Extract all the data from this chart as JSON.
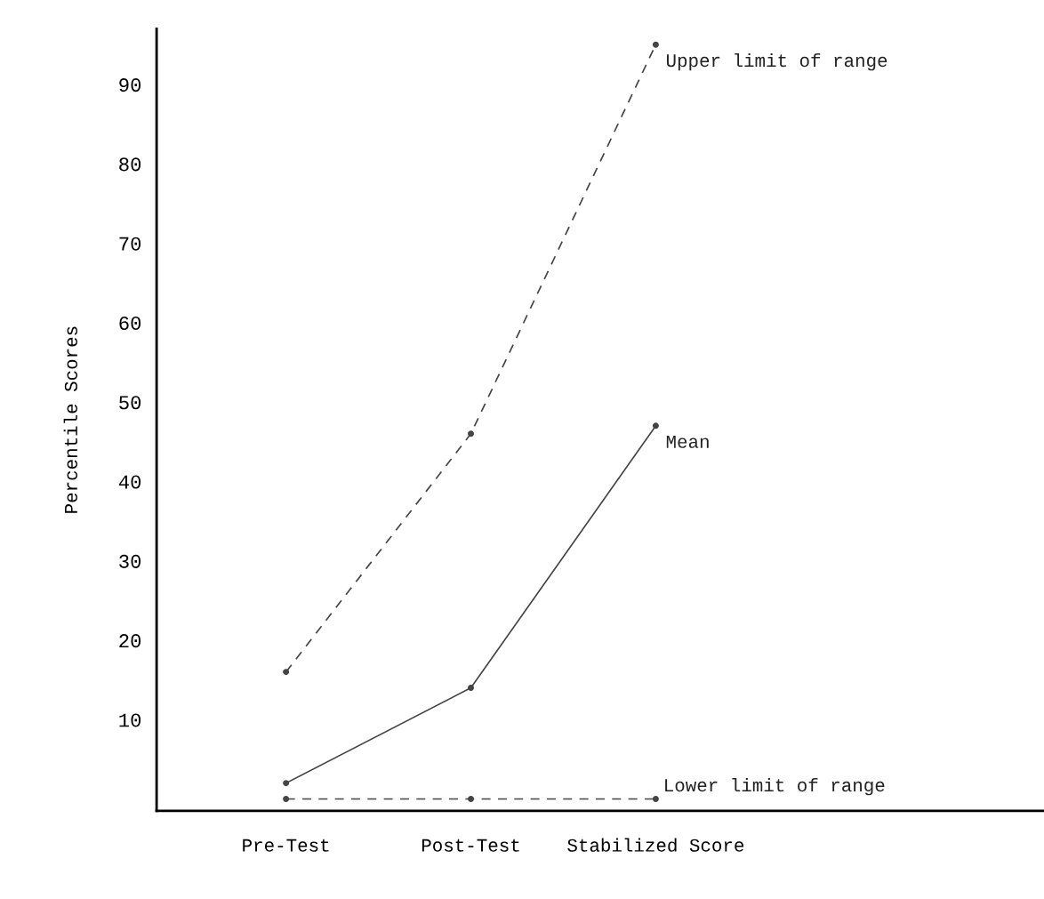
{
  "chart_data": {
    "type": "line",
    "ylabel": "Percentile Scores",
    "categories": [
      "Pre-Test",
      "Post-Test",
      "Stabilized Score"
    ],
    "series": [
      {
        "name": "Upper limit of range",
        "color": "#444444",
        "values": [
          16,
          46,
          95
        ],
        "line_style": "dashed"
      },
      {
        "name": "Mean",
        "color": "#444444",
        "values": [
          2,
          14,
          47
        ],
        "line_style": "solid"
      },
      {
        "name": "Lower limit of range",
        "color": "#444444",
        "values": [
          0,
          0,
          0
        ],
        "line_style": "dashed"
      }
    ],
    "ylim": [
      -1.5,
      97
    ],
    "yticks": [
      10,
      20,
      30,
      40,
      50,
      60,
      70,
      80,
      90
    ],
    "marker": "circle",
    "grid": false,
    "legend": false
  }
}
